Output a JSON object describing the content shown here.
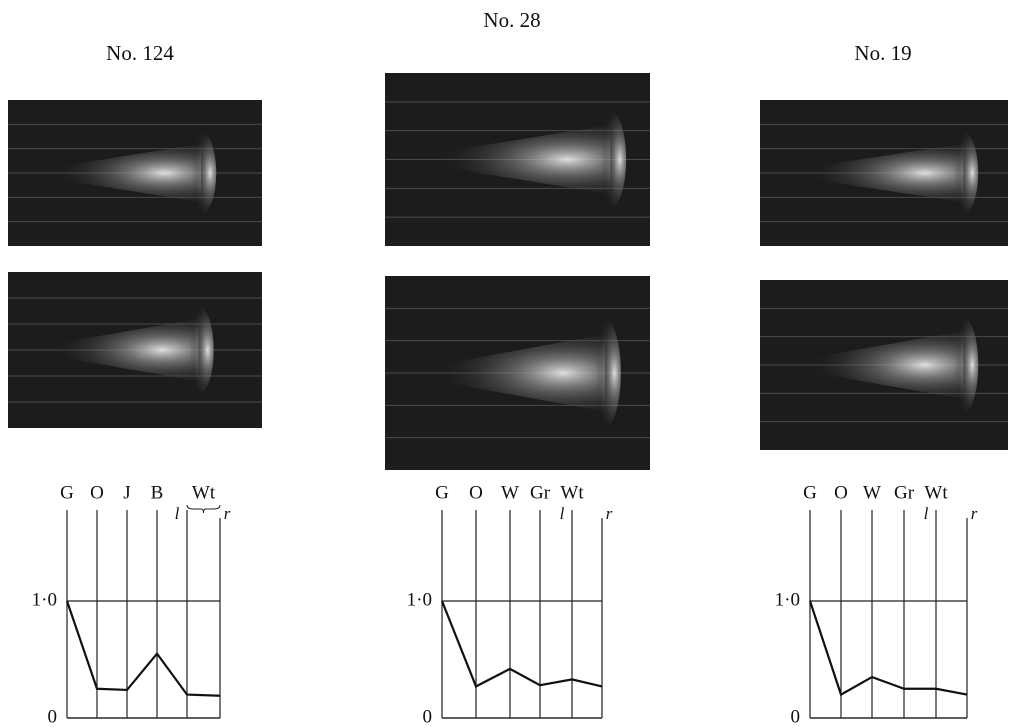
{
  "chart_data": [
    {
      "type": "line",
      "title": "No. 124",
      "categories": [
        "G",
        "O",
        "J",
        "B",
        "l",
        "r"
      ],
      "group_label": "Wt",
      "values": [
        1.0,
        0.25,
        0.24,
        0.55,
        0.2,
        0.19
      ],
      "color": "#111111",
      "ylim": [
        0,
        1
      ],
      "yticks": [
        0,
        {
          "value": 1,
          "label": "1·0"
        }
      ]
    },
    {
      "type": "line",
      "title": "No. 28",
      "categories": [
        "G",
        "O",
        "W",
        "Gr",
        "l",
        "r"
      ],
      "group_label": "Wt",
      "values": [
        1.0,
        0.27,
        0.42,
        0.28,
        0.33,
        0.27
      ],
      "color": "#111111",
      "ylim": [
        0,
        1
      ],
      "yticks": [
        0,
        {
          "value": 1,
          "label": "1·0"
        }
      ]
    },
    {
      "type": "line",
      "title": "No. 19",
      "categories": [
        "G",
        "O",
        "W",
        "Gr",
        "l",
        "r"
      ],
      "group_label": "Wt",
      "values": [
        1.0,
        0.2,
        0.35,
        0.25,
        0.25,
        0.2
      ],
      "color": "#111111",
      "ylim": [
        0,
        1
      ],
      "yticks": [
        0,
        {
          "value": 1,
          "label": "1·0"
        }
      ]
    }
  ]
}
